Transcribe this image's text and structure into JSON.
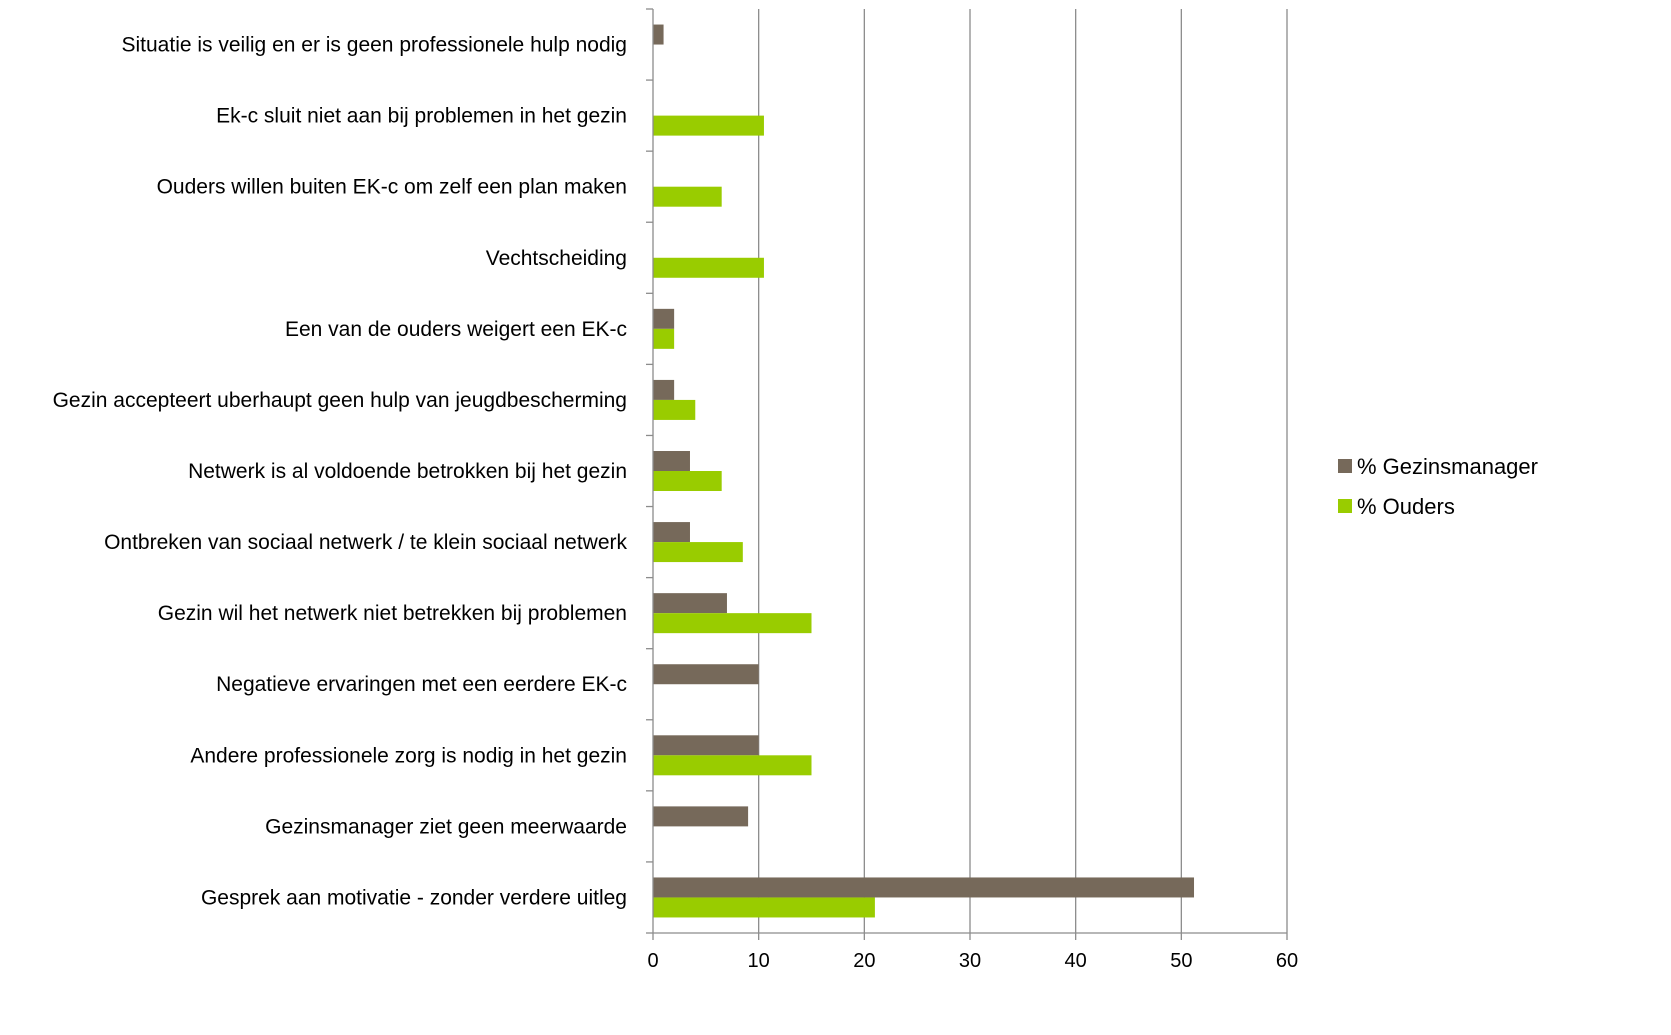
{
  "chart_data": {
    "type": "bar",
    "orientation": "horizontal",
    "categories": [
      "Situatie is veilig en er is geen professionele hulp nodig",
      "Ek-c sluit niet aan bij problemen in het gezin",
      "Ouders willen buiten EK-c om zelf een plan maken",
      "Vechtscheiding",
      "Een van de ouders weigert een EK-c",
      "Gezin accepteert uberhaupt geen hulp van jeugdbescherming",
      "Netwerk is al voldoende betrokken bij het gezin",
      "Ontbreken van sociaal netwerk / te klein sociaal netwerk",
      "Gezin wil het netwerk niet betrekken bij problemen",
      "Negatieve ervaringen met een eerdere EK-c",
      "Andere professionele zorg is nodig in het gezin",
      "Gezinsmanager ziet geen meerwaarde",
      "Gesprek aan motivatie - zonder verdere uitleg"
    ],
    "series": [
      {
        "name": "% Gezinsmanager",
        "color": "#76695A",
        "values": [
          1,
          0,
          0,
          0,
          2,
          2,
          3.5,
          3.5,
          7,
          10,
          10,
          9,
          51.2
        ]
      },
      {
        "name": "% Ouders",
        "color": "#99CC00",
        "values": [
          0,
          10.5,
          6.5,
          10.5,
          2,
          4,
          6.5,
          8.5,
          15,
          0,
          15,
          0,
          21
        ]
      }
    ],
    "xlim": [
      0,
      60
    ],
    "xticks": [
      "0",
      "10",
      "20",
      "30",
      "40",
      "50",
      "60"
    ],
    "grid": "vertical",
    "legend_position": "right",
    "title": "",
    "xlabel": "",
    "ylabel": ""
  }
}
